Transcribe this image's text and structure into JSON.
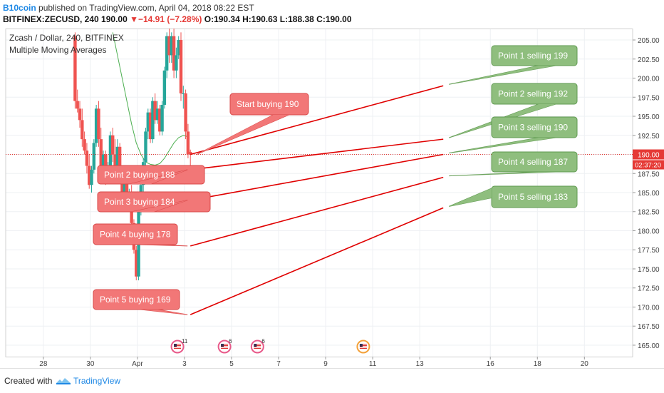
{
  "header": {
    "author": "B10coin",
    "published_text": "published on TradingView.com, April 04, 2018 08:22 EST",
    "symbol_interval": "BITFINEX:ZECUSD, 240",
    "last": "190.00",
    "change": "−14.91 (−7.28%)",
    "ohlc": "O:190.34 H:190.63 L:188.38 C:190.00"
  },
  "footer": {
    "created_with": "Created with",
    "brand": "TradingView"
  },
  "chart_data": {
    "type": "candlestick",
    "title": "Zcash / Dollar, 240, BITFINEX",
    "indicator_label": "Multiple Moving Averages",
    "y_axis": {
      "range": [
        163.5,
        206.5
      ],
      "ticks": [
        "205.00",
        "202.50",
        "200.00",
        "197.50",
        "195.00",
        "192.50",
        "190.00",
        "187.50",
        "185.00",
        "182.50",
        "180.00",
        "177.50",
        "175.00",
        "172.50",
        "170.00",
        "167.50",
        "165.00"
      ]
    },
    "x_axis": {
      "ticks": [
        {
          "label": "28",
          "day": 28
        },
        {
          "label": "30",
          "day": 30
        },
        {
          "label": "Apr",
          "day": 32
        },
        {
          "label": "3",
          "day": 34
        },
        {
          "label": "5",
          "day": 36
        },
        {
          "label": "7",
          "day": 38
        },
        {
          "label": "9",
          "day": 40
        },
        {
          "label": "11",
          "day": 42
        },
        {
          "label": "13",
          "day": 44
        },
        {
          "label": "16",
          "day": 47
        },
        {
          "label": "18",
          "day": 49
        },
        {
          "label": "20",
          "day": 51
        }
      ]
    },
    "grid": true,
    "last_price_label": "190.00",
    "countdown_label": "02:37:20",
    "colors": {
      "up": "#26a69a",
      "down": "#ef5350",
      "ma": "#4caf50",
      "target_line": "#e00000"
    },
    "candles": [
      [
        29.35,
        205.5,
        206,
        196,
        197
      ],
      [
        29.45,
        197,
        198.5,
        195.5,
        196
      ],
      [
        29.55,
        196,
        197,
        193.5,
        194.5
      ],
      [
        29.65,
        194.5,
        196,
        191,
        192
      ],
      [
        29.75,
        192,
        193,
        190,
        190.5
      ],
      [
        29.85,
        190.5,
        191.5,
        187.5,
        188.5
      ],
      [
        29.95,
        188.5,
        190,
        185.5,
        186
      ],
      [
        30.05,
        186,
        188.5,
        185,
        188
      ],
      [
        30.15,
        188,
        192,
        187.5,
        191.5
      ],
      [
        30.25,
        191.5,
        196.5,
        191,
        196
      ],
      [
        30.35,
        196,
        197,
        191,
        192
      ],
      [
        30.45,
        192,
        193.5,
        188,
        188.5
      ],
      [
        30.55,
        188.5,
        190.5,
        187,
        190
      ],
      [
        30.65,
        190,
        190.5,
        186,
        187
      ],
      [
        30.75,
        187,
        189,
        186.5,
        188.5
      ],
      [
        30.85,
        188.5,
        193,
        188,
        192.5
      ],
      [
        30.95,
        192.5,
        193.5,
        189,
        190
      ],
      [
        31.05,
        190,
        192,
        187.5,
        188
      ],
      [
        31.15,
        188,
        192,
        187.5,
        191
      ],
      [
        31.25,
        191,
        191.5,
        187,
        188
      ],
      [
        31.35,
        188,
        188.5,
        184.5,
        185
      ],
      [
        31.45,
        185,
        187.5,
        184.5,
        187
      ],
      [
        31.55,
        187,
        187.5,
        183.5,
        184
      ],
      [
        31.65,
        184,
        185.5,
        183,
        185
      ],
      [
        31.75,
        185,
        186,
        180.5,
        181
      ],
      [
        31.85,
        181,
        181.5,
        177,
        177.5
      ],
      [
        31.95,
        177.5,
        178,
        173.5,
        174
      ],
      [
        32.05,
        174,
        183,
        173.5,
        182.5
      ],
      [
        32.15,
        182.5,
        186.5,
        182,
        186
      ],
      [
        32.25,
        186,
        189.5,
        185,
        189
      ],
      [
        32.35,
        189,
        193.5,
        188.5,
        193
      ],
      [
        32.45,
        193,
        196,
        192,
        195.5
      ],
      [
        32.55,
        195.5,
        196,
        191.5,
        192
      ],
      [
        32.65,
        192,
        197.5,
        191.5,
        197
      ],
      [
        32.75,
        197,
        198,
        194,
        194.5
      ],
      [
        32.85,
        194.5,
        197,
        194,
        196
      ],
      [
        32.95,
        196,
        196.5,
        192.5,
        193
      ],
      [
        33.05,
        193,
        197,
        192.5,
        196.5
      ],
      [
        33.15,
        196.5,
        201.5,
        196,
        201
      ],
      [
        33.25,
        201,
        206,
        200,
        205.5
      ],
      [
        33.35,
        205.5,
        206.5,
        202,
        203
      ],
      [
        33.45,
        203,
        206,
        202,
        205.5
      ],
      [
        33.55,
        205.5,
        206.5,
        200,
        201
      ],
      [
        33.65,
        201,
        204,
        200,
        203
      ],
      [
        33.75,
        203,
        205.5,
        202.5,
        205
      ],
      [
        33.85,
        205,
        206,
        197,
        198
      ],
      [
        33.95,
        198,
        199,
        196,
        198
      ],
      [
        34.05,
        198,
        198.5,
        192,
        193
      ],
      [
        34.15,
        193,
        194,
        189.5,
        190
      ],
      [
        34.25,
        190.34,
        190.63,
        188.38,
        190
      ]
    ],
    "moving_average": [
      [
        30.95,
        206
      ],
      [
        31.15,
        203
      ],
      [
        31.35,
        200
      ],
      [
        31.55,
        197
      ],
      [
        31.75,
        194
      ],
      [
        31.95,
        191.5
      ],
      [
        32.15,
        190
      ],
      [
        32.35,
        189
      ],
      [
        32.55,
        188.7
      ],
      [
        32.75,
        188.6
      ],
      [
        32.95,
        188.8
      ],
      [
        33.15,
        189.5
      ],
      [
        33.35,
        190.5
      ],
      [
        33.55,
        191.5
      ],
      [
        33.75,
        192.2
      ],
      [
        33.95,
        192.5
      ],
      [
        34.15,
        192.3
      ]
    ],
    "buy_points": [
      {
        "label": "Start buying 190",
        "price": 190,
        "day": 34.25,
        "box": "above"
      },
      {
        "label": "Point 2 buying 188",
        "price": 188,
        "day": 34.25,
        "box": "left"
      },
      {
        "label": "Point 3 buying 184",
        "price": 184,
        "day": 34.25,
        "box": "left"
      },
      {
        "label": "Point 4 buying 178",
        "price": 178,
        "day": 34.25,
        "box": "left"
      },
      {
        "label": "Point 5 buying 169",
        "price": 169,
        "day": 34.25,
        "box": "left"
      }
    ],
    "sell_points": [
      {
        "label": "Point 1 selling 199",
        "price": 199,
        "day": 45.0
      },
      {
        "label": "Point 2 selling 192",
        "price": 192,
        "day": 45.0
      },
      {
        "label": "Point 3 selling 190",
        "price": 190,
        "day": 45.0
      },
      {
        "label": "Point 4 selling 187",
        "price": 187,
        "day": 45.0
      },
      {
        "label": "Point 5 selling 183",
        "price": 183,
        "day": 45.0
      }
    ],
    "events": [
      {
        "day": 33.7,
        "count": "11"
      },
      {
        "day": 35.7,
        "count": "6"
      },
      {
        "day": 37.1,
        "count": "6"
      },
      {
        "day": 41.6,
        "count": ""
      }
    ]
  }
}
